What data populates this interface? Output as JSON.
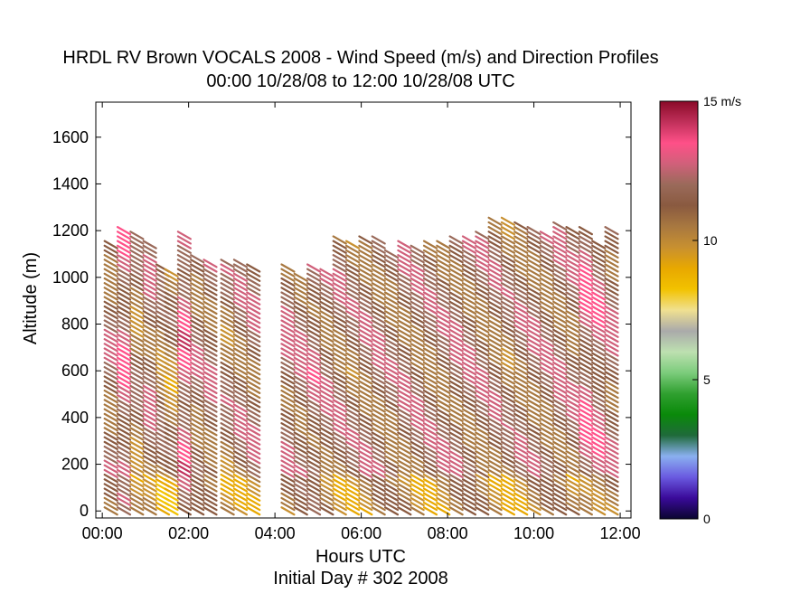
{
  "chart_data": {
    "type": "scatter",
    "title": "HRDL RV Brown VOCALS 2008 - Wind Speed (m/s) and Direction Profiles",
    "subtitle": "00:00 10/28/08 to 12:00 10/28/08  UTC",
    "xlabel": "Hours UTC",
    "xlabel2": "Initial Day # 302  2008",
    "ylabel": "Altitude (m)",
    "xlim": [
      -0.15,
      12.25
    ],
    "ylim": [
      -30,
      1750
    ],
    "x_ticks": [
      0,
      2,
      4,
      6,
      8,
      10,
      12
    ],
    "x_tick_labels": [
      "00:00",
      "02:00",
      "04:00",
      "06:00",
      "08:00",
      "10:00",
      "12:00"
    ],
    "y_ticks": [
      0,
      200,
      400,
      600,
      800,
      1000,
      1200,
      1400,
      1600
    ],
    "y_tick_labels": [
      "0",
      "200",
      "400",
      "600",
      "800",
      "1000",
      "1200",
      "1400",
      "1600"
    ],
    "grid": false,
    "colorbar": {
      "unit_label": "15 m/s",
      "range": [
        0,
        15
      ],
      "ticks": [
        0,
        5,
        10,
        15
      ],
      "tick_labels": [
        "0",
        "5",
        "10",
        "15 m/s"
      ],
      "colors": [
        "#0a0530",
        "#3a0a9a",
        "#6a5ae0",
        "#8ab0f0",
        "#1f6a3a",
        "#0a8a0a",
        "#30a030",
        "#7ccc7c",
        "#bde0b0",
        "#aaaaaa",
        "#f0e090",
        "#f2c200",
        "#e8a800",
        "#c89030",
        "#a87840",
        "#8a5a40",
        "#9a6a5a",
        "#d0607a",
        "#ff5088",
        "#c0305a",
        "#8a0a28"
      ]
    },
    "profiles_note": "barbs",
    "profiles": [
      {
        "x": 0.2,
        "top": 1140,
        "speed": 11.5
      },
      {
        "x": 0.5,
        "top": 1210,
        "speed": 12.5
      },
      {
        "x": 0.8,
        "top": 1180,
        "speed": 11.0
      },
      {
        "x": 1.1,
        "top": 1150,
        "speed": 11.8
      },
      {
        "x": 1.4,
        "top": 1050,
        "speed": 11.0
      },
      {
        "x": 1.6,
        "top": 1020,
        "speed": 10.5
      },
      {
        "x": 1.9,
        "top": 1190,
        "speed": 12.8
      },
      {
        "x": 2.2,
        "top": 1080,
        "speed": 11.5
      },
      {
        "x": 2.5,
        "top": 1060,
        "speed": 11.7
      },
      {
        "x": 2.9,
        "top": 1060,
        "speed": 11.2
      },
      {
        "x": 3.2,
        "top": 1070,
        "speed": 11.5
      },
      {
        "x": 3.5,
        "top": 1040,
        "speed": 11.6
      },
      {
        "x": 4.3,
        "top": 1050,
        "speed": 11.9
      },
      {
        "x": 4.6,
        "top": 1000,
        "speed": 11.8
      },
      {
        "x": 4.9,
        "top": 1040,
        "speed": 12.0
      },
      {
        "x": 5.2,
        "top": 1030,
        "speed": 11.7
      },
      {
        "x": 5.5,
        "top": 1160,
        "speed": 11.5
      },
      {
        "x": 5.8,
        "top": 1150,
        "speed": 11.3
      },
      {
        "x": 6.1,
        "top": 1170,
        "speed": 11.5
      },
      {
        "x": 6.4,
        "top": 1160,
        "speed": 11.6
      },
      {
        "x": 6.7,
        "top": 1110,
        "speed": 11.4
      },
      {
        "x": 7.0,
        "top": 1150,
        "speed": 11.6
      },
      {
        "x": 7.3,
        "top": 1130,
        "speed": 11.5
      },
      {
        "x": 7.6,
        "top": 1140,
        "speed": 11.4
      },
      {
        "x": 7.9,
        "top": 1140,
        "speed": 11.5
      },
      {
        "x": 8.2,
        "top": 1170,
        "speed": 11.8
      },
      {
        "x": 8.5,
        "top": 1160,
        "speed": 11.6
      },
      {
        "x": 8.8,
        "top": 1190,
        "speed": 11.5
      },
      {
        "x": 9.1,
        "top": 1250,
        "speed": 11.4
      },
      {
        "x": 9.4,
        "top": 1250,
        "speed": 11.2
      },
      {
        "x": 9.7,
        "top": 1220,
        "speed": 11.4
      },
      {
        "x": 10.0,
        "top": 1200,
        "speed": 11.6
      },
      {
        "x": 10.3,
        "top": 1190,
        "speed": 11.5
      },
      {
        "x": 10.6,
        "top": 1220,
        "speed": 11.7
      },
      {
        "x": 10.9,
        "top": 1200,
        "speed": 11.6
      },
      {
        "x": 11.2,
        "top": 1200,
        "speed": 12.5
      },
      {
        "x": 11.5,
        "top": 1150,
        "speed": 12.2
      },
      {
        "x": 11.8,
        "top": 1200,
        "speed": 11.8
      }
    ]
  }
}
